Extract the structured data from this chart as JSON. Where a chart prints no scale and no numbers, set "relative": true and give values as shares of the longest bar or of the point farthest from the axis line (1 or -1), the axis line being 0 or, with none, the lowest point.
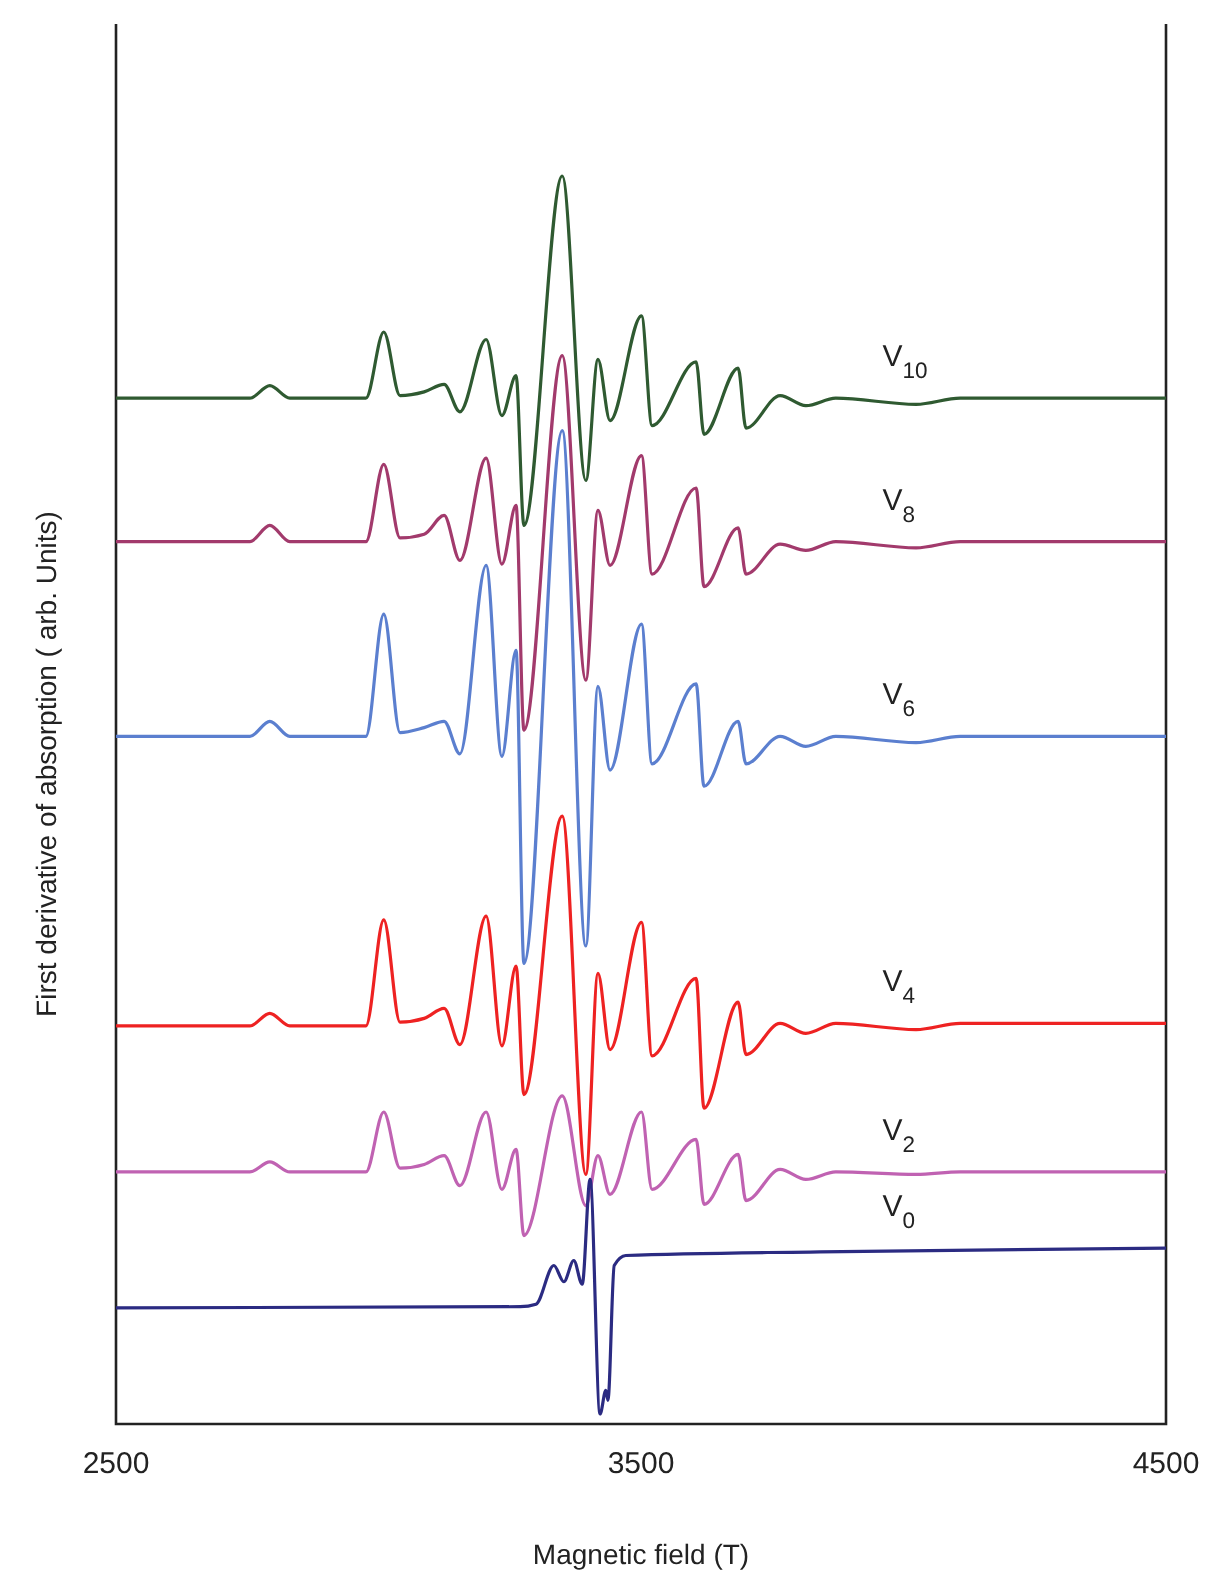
{
  "chart_data": {
    "type": "line",
    "xlabel": "Magnetic field (T)",
    "ylabel": "First derivative of absorption ( arb. Units)",
    "relative": true,
    "xlim": [
      2500,
      4500
    ],
    "xticks": [
      2500,
      3500,
      4500
    ],
    "x": [
      2500,
      2755,
      2793,
      2831,
      2976,
      3010,
      3041,
      3087,
      3125,
      3155,
      3205,
      3235,
      3262,
      3277,
      3350,
      3395,
      3418,
      3441,
      3501,
      3521,
      3605,
      3620,
      3685,
      3700,
      3765,
      3814,
      3871,
      4024,
      4108,
      4500
    ],
    "series": [
      {
        "name": "V$_{10}$",
        "color": "#2f5a31",
        "values": [
          0.822,
          0.822,
          0.832,
          0.822,
          0.822,
          0.875,
          0.824,
          0.827,
          0.833,
          0.811,
          0.869,
          0.808,
          0.84,
          0.72,
          1.0,
          0.756,
          0.853,
          0.804,
          0.888,
          0.8,
          0.851,
          0.793,
          0.846,
          0.798,
          0.824,
          0.816,
          0.822,
          0.817,
          0.822,
          0.822
        ]
      },
      {
        "name": "V$_{8}$",
        "color": "#a23a6c",
        "values": [
          0.707,
          0.707,
          0.72,
          0.707,
          0.707,
          0.769,
          0.71,
          0.713,
          0.728,
          0.692,
          0.774,
          0.689,
          0.736,
          0.556,
          0.856,
          0.596,
          0.732,
          0.688,
          0.776,
          0.681,
          0.75,
          0.671,
          0.718,
          0.681,
          0.705,
          0.7,
          0.707,
          0.702,
          0.707,
          0.707
        ]
      },
      {
        "name": "V$_{6}$",
        "color": "#5b7fcf",
        "values": [
          0.551,
          0.551,
          0.563,
          0.551,
          0.551,
          0.649,
          0.554,
          0.558,
          0.563,
          0.537,
          0.688,
          0.535,
          0.62,
          0.369,
          0.796,
          0.383,
          0.591,
          0.524,
          0.641,
          0.529,
          0.593,
          0.511,
          0.563,
          0.529,
          0.551,
          0.543,
          0.551,
          0.546,
          0.551,
          0.551
        ]
      },
      {
        "name": "V$_{4}$",
        "color": "#ee2222",
        "values": [
          0.319,
          0.319,
          0.329,
          0.319,
          0.319,
          0.404,
          0.322,
          0.325,
          0.333,
          0.304,
          0.407,
          0.303,
          0.367,
          0.264,
          0.487,
          0.2,
          0.361,
          0.3,
          0.402,
          0.295,
          0.357,
          0.253,
          0.338,
          0.296,
          0.321,
          0.313,
          0.321,
          0.316,
          0.321,
          0.321
        ]
      },
      {
        "name": "V$_{2}$",
        "color": "#c062b2",
        "values": [
          0.202,
          0.202,
          0.21,
          0.202,
          0.202,
          0.25,
          0.205,
          0.208,
          0.215,
          0.191,
          0.25,
          0.188,
          0.22,
          0.151,
          0.263,
          0.175,
          0.215,
          0.184,
          0.25,
          0.188,
          0.228,
          0.176,
          0.216,
          0.179,
          0.204,
          0.196,
          0.202,
          0.2,
          0.202,
          0.202
        ]
      },
      {
        "name": "V$_{0}$",
        "color": "#2b2b82",
        "x": [
          2500,
          3270,
          3300,
          3334,
          3353,
          3372,
          3388,
          3403,
          3422,
          3433,
          3437,
          3449,
          3471,
          3841,
          4500
        ],
        "values": [
          0.093,
          0.094,
          0.096,
          0.127,
          0.114,
          0.131,
          0.112,
          0.196,
          0.008,
          0.027,
          0.019,
          0.127,
          0.135,
          0.138,
          0.141
        ]
      }
    ]
  }
}
